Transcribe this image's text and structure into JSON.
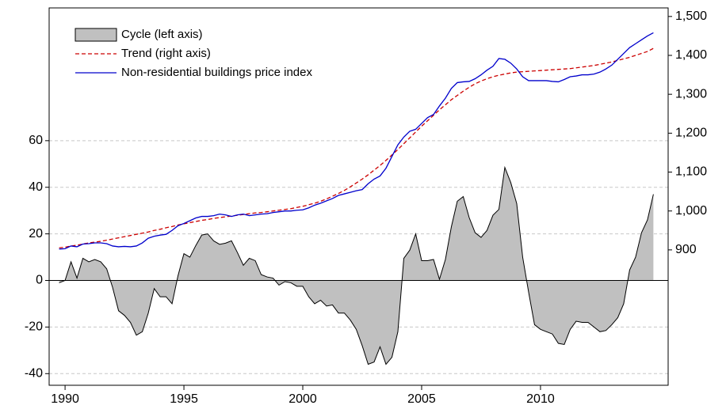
{
  "chart_data": {
    "type": "line",
    "x": [
      1989.75,
      1990,
      1990.25,
      1990.5,
      1990.75,
      1991,
      1991.25,
      1991.5,
      1991.75,
      1992,
      1992.25,
      1992.5,
      1992.75,
      1993,
      1993.25,
      1993.5,
      1993.75,
      1994,
      1994.25,
      1994.5,
      1994.75,
      1995,
      1995.25,
      1995.5,
      1995.75,
      1996,
      1996.25,
      1996.5,
      1996.75,
      1997,
      1997.25,
      1997.5,
      1997.75,
      1998,
      1998.25,
      1998.5,
      1998.75,
      1999,
      1999.25,
      1999.5,
      1999.75,
      2000,
      2000.25,
      2000.5,
      2000.75,
      2001,
      2001.25,
      2001.5,
      2001.75,
      2002,
      2002.25,
      2002.5,
      2002.75,
      2003,
      2003.25,
      2003.5,
      2003.75,
      2004,
      2004.25,
      2004.5,
      2004.75,
      2005,
      2005.25,
      2005.5,
      2005.75,
      2006,
      2006.25,
      2006.5,
      2006.75,
      2007,
      2007.25,
      2007.5,
      2007.75,
      2008,
      2008.25,
      2008.5,
      2008.75,
      2009,
      2009.25,
      2009.5,
      2009.75,
      2010,
      2010.25,
      2010.5,
      2010.75,
      2011,
      2011.25,
      2011.5,
      2011.75,
      2012,
      2012.25,
      2012.5,
      2012.75,
      2013,
      2013.25,
      2013.5,
      2013.75,
      2014,
      2014.25,
      2014.5,
      2014.75
    ],
    "series": [
      {
        "name": "Cycle (left axis)",
        "color": "#c0c0c0",
        "style": "area",
        "axis": "y",
        "values": [
          -1,
          0,
          8,
          1,
          9.5,
          8,
          9,
          8,
          5,
          -3,
          -13,
          -15,
          -18,
          -23.5,
          -22,
          -14,
          -3.5,
          -7,
          -7,
          -10,
          2,
          11.5,
          10,
          15,
          19.5,
          20,
          17,
          15.5,
          16,
          17,
          12,
          6.5,
          9.5,
          8.5,
          2.5,
          1.5,
          1,
          -2,
          -0.5,
          -1,
          -2.5,
          -2.5,
          -7,
          -10,
          -8.5,
          -11,
          -10.5,
          -14,
          -14,
          -17,
          -21,
          -28,
          -36,
          -35,
          -28.5,
          -36,
          -33,
          -22,
          9.5,
          13,
          20,
          8.5,
          8.5,
          9,
          0.5,
          9,
          23,
          34,
          36,
          27,
          20.5,
          18.5,
          21.5,
          28,
          30.5,
          48.5,
          42,
          33,
          10,
          -5,
          -19,
          -21,
          -22,
          -23,
          -27,
          -27.5,
          -21,
          -17.5,
          -18,
          -18,
          -20,
          -22,
          -21.5,
          -19,
          -16,
          -10,
          4.5,
          10,
          20.5,
          26,
          37
        ]
      },
      {
        "name": "Trend (right axis)",
        "color": "#cc0000",
        "style": "dashed",
        "axis": "y2",
        "values": [
          905,
          907,
          910,
          912,
          915,
          918,
          920,
          922,
          925,
          928,
          931,
          934,
          937,
          940,
          943,
          946,
          950,
          953,
          957,
          960,
          964,
          967,
          970,
          973,
          976,
          978,
          981,
          983,
          985,
          987,
          989,
          991,
          993,
          995,
          996,
          998,
          1000,
          1002,
          1004,
          1006,
          1009,
          1012,
          1016,
          1020,
          1025,
          1031,
          1038,
          1045,
          1053,
          1062,
          1072,
          1082,
          1093,
          1105,
          1117,
          1130,
          1144,
          1158,
          1173,
          1188,
          1203,
          1218,
          1232,
          1246,
          1260,
          1273,
          1286,
          1297,
          1308,
          1318,
          1327,
          1334,
          1340,
          1345,
          1349,
          1352,
          1355,
          1357,
          1358,
          1359,
          1360,
          1361,
          1362,
          1363,
          1364,
          1365,
          1366,
          1368,
          1370,
          1372,
          1374,
          1377,
          1380,
          1383,
          1387,
          1391,
          1395,
          1400,
          1405,
          1410,
          1418
        ]
      },
      {
        "name": "Non-residential buildings price index",
        "color": "#0000cc",
        "style": "solid",
        "axis": "y2",
        "values": [
          902,
          903,
          910,
          908,
          915,
          916,
          918,
          918,
          916,
          910,
          908,
          909,
          908,
          910,
          918,
          930,
          935,
          938,
          940,
          950,
          962,
          968,
          975,
          982,
          986,
          986,
          988,
          992,
          990,
          986,
          990,
          992,
          988,
          990,
          992,
          993,
          996,
          998,
          1000,
          1000,
          1002,
          1003,
          1008,
          1015,
          1020,
          1026,
          1032,
          1040,
          1044,
          1048,
          1052,
          1055,
          1070,
          1082,
          1090,
          1110,
          1140,
          1170,
          1190,
          1205,
          1210,
          1225,
          1240,
          1248,
          1270,
          1290,
          1315,
          1330,
          1332,
          1333,
          1340,
          1350,
          1362,
          1372,
          1392,
          1390,
          1380,
          1365,
          1345,
          1335,
          1335,
          1335,
          1335,
          1333,
          1332,
          1338,
          1345,
          1347,
          1350,
          1350,
          1352,
          1357,
          1365,
          1375,
          1390,
          1405,
          1420,
          1430,
          1440,
          1450,
          1458
        ]
      }
    ],
    "xlim": [
      1989.33,
      2015.37
    ],
    "xticks": [
      1990,
      1995,
      2000,
      2005,
      2010
    ],
    "ylim": [
      -45,
      117
    ],
    "yticks": [
      -40,
      -20,
      0,
      20,
      40,
      60
    ],
    "y2lim": [
      552,
      1522
    ],
    "y2ticks": [
      900,
      {
        "value": 1000,
        "label": "1,000"
      },
      {
        "value": 1100,
        "label": "1,100"
      },
      {
        "value": 1200,
        "label": "1,200"
      },
      {
        "value": 1300,
        "label": "1,300"
      },
      {
        "value": 1400,
        "label": "1,400"
      },
      {
        "value": 1500,
        "label": "1,500"
      }
    ],
    "grid": true,
    "legend": "top-left"
  }
}
